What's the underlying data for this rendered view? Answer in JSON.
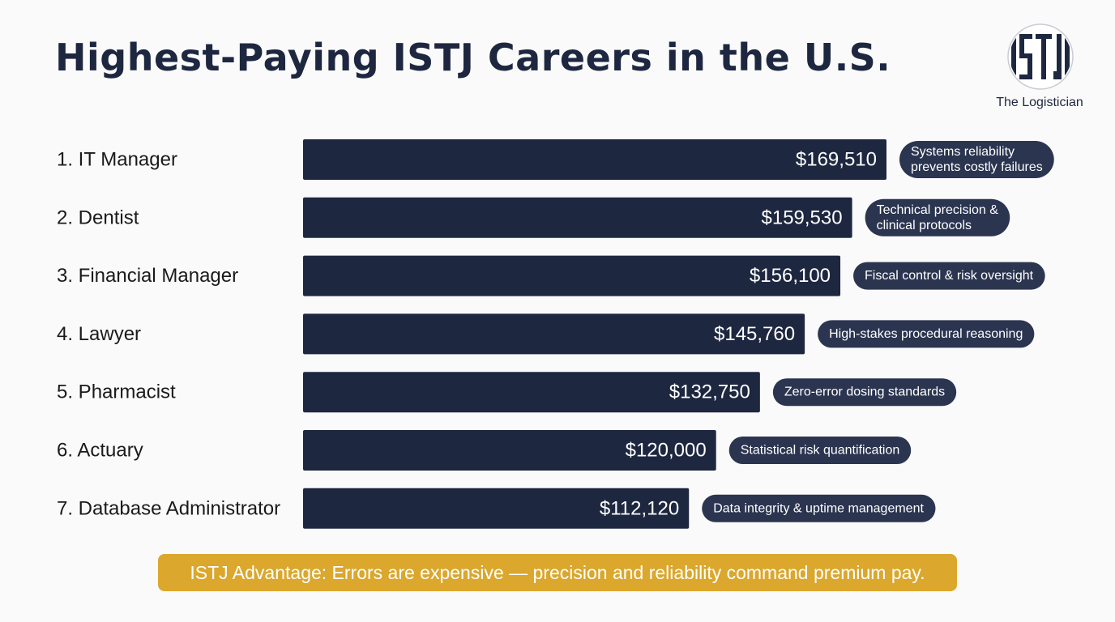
{
  "title": "Highest-Paying ISTJ Careers in the U.S.",
  "brand": {
    "name": "The Logistician",
    "logo_text": "ISTJ",
    "logo_icon": "istj-monogram-icon"
  },
  "chart_data": {
    "type": "bar",
    "orientation": "horizontal",
    "categories": [
      "1. IT Manager",
      "2. Dentist",
      "3. Financial Manager",
      "4. Lawyer",
      "5. Pharmacist",
      "6. Actuary",
      "7. Database Administrator"
    ],
    "values": [
      169510,
      159530,
      156100,
      145760,
      132750,
      120000,
      112120
    ],
    "value_labels": [
      "$169,510",
      "$159,530",
      "$156,100",
      "$145,760",
      "$132,750",
      "$120,000",
      "$112,120"
    ],
    "annotations": [
      [
        "Systems reliability",
        "prevents costly failures"
      ],
      [
        "Technical precision &",
        "clinical protocols"
      ],
      [
        "Fiscal control & risk oversight"
      ],
      [
        "High-stakes procedural reasoning"
      ],
      [
        "Zero-error dosing standards"
      ],
      [
        "Statistical risk quantification"
      ],
      [
        "Data integrity & uptime management"
      ]
    ],
    "xlim": [
      0,
      169510
    ],
    "grid": false,
    "bar_color": "#1e2740",
    "annotation_color": "#2b3550"
  },
  "footer": {
    "text": "ISTJ Advantage: Errors are expensive — precision and reliability command premium pay.",
    "color": "#dba72c"
  }
}
